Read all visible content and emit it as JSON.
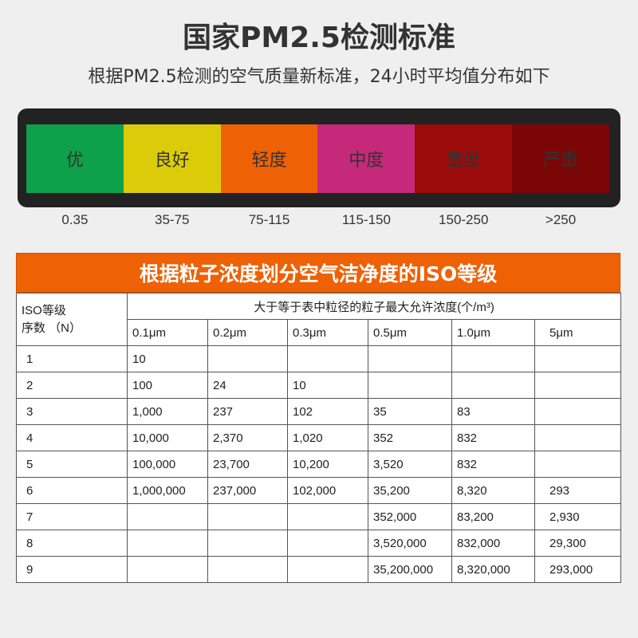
{
  "header": {
    "title": "国家PM2.5检测标准",
    "subtitle": "根据PM2.5检测的空气质量新标准，24小时平均值分布如下"
  },
  "aqi_levels": [
    {
      "label": "优",
      "range": "0.35",
      "color": "#0ea04a"
    },
    {
      "label": "良好",
      "range": "35-75",
      "color": "#dccb08"
    },
    {
      "label": "轻度",
      "range": "75-115",
      "color": "#ee6105"
    },
    {
      "label": "中度",
      "range": "115-150",
      "color": "#c5297a"
    },
    {
      "label": "重度",
      "range": "150-250",
      "color": "#9c0b0b"
    },
    {
      "label": "严重",
      "range": ">250",
      "color": "#7a0606"
    }
  ],
  "iso": {
    "banner": "根据粒子浓度划分空气洁净度的ISO等级",
    "left_header_line1": "ISO等级",
    "left_header_line2": "序数 （N）",
    "top_header": "大于等于表中粒径的粒子最大允许浓度(个/m³)",
    "columns": [
      "0.1μm",
      "0.2μm",
      "0.3μm",
      "0.5μm",
      "1.0μm",
      "5μm"
    ],
    "rows": [
      {
        "n": "1",
        "values": [
          "10",
          "",
          "",
          "",
          "",
          ""
        ]
      },
      {
        "n": "2",
        "values": [
          "100",
          "24",
          "10",
          "",
          "",
          ""
        ]
      },
      {
        "n": "3",
        "values": [
          "1,000",
          "237",
          "102",
          "35",
          "83",
          ""
        ]
      },
      {
        "n": "4",
        "values": [
          "10,000",
          "2,370",
          "1,020",
          "352",
          "832",
          ""
        ]
      },
      {
        "n": "5",
        "values": [
          "100,000",
          "23,700",
          "10,200",
          "3,520",
          "832",
          ""
        ]
      },
      {
        "n": "6",
        "values": [
          "1,000,000",
          "237,000",
          "102,000",
          "35,200",
          "8,320",
          "293"
        ]
      },
      {
        "n": "7",
        "values": [
          "",
          "",
          "",
          "352,000",
          "83,200",
          "2,930"
        ]
      },
      {
        "n": "8",
        "values": [
          "",
          "",
          "",
          "3,520,000",
          "832,000",
          "29,300"
        ]
      },
      {
        "n": "9",
        "values": [
          "",
          "",
          "",
          "35,200,000",
          "8,320,000",
          "293,000"
        ]
      }
    ]
  }
}
